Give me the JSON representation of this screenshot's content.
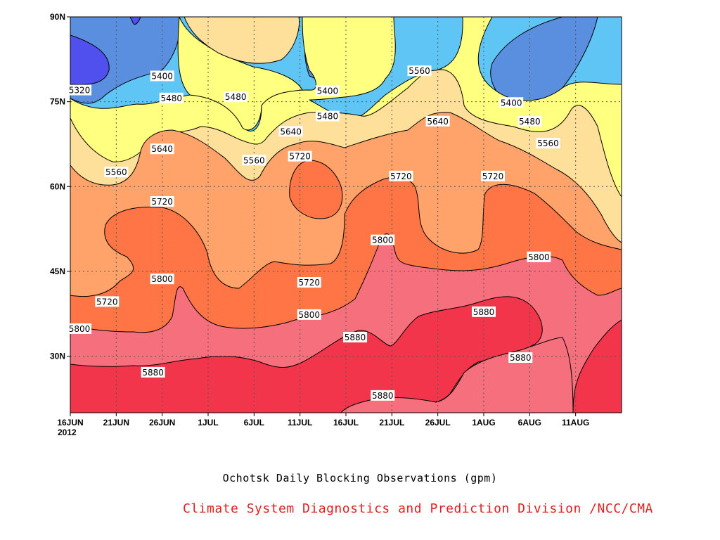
{
  "caption": {
    "title": "Ochotsk Daily Blocking Observations (gpm)",
    "credit": "Climate System Diagnostics and Prediction Division /NCC/CMA",
    "credit_color": "#e02020"
  },
  "chart_data": {
    "type": "heatmap",
    "subtype": "filled-contour",
    "title": "Ochotsk Daily Blocking Observations (gpm)",
    "units": "gpm",
    "x_axis": {
      "ticks": [
        "16JUN",
        "21JUN",
        "26JUN",
        "1JUL",
        "6JUL",
        "11JUL",
        "16JUL",
        "21JUL",
        "26JUL",
        "1AUG",
        "6AUG",
        "11AUG"
      ],
      "first_tick_year": "2012",
      "range": [
        "2012-06-16",
        "2012-08-15"
      ]
    },
    "y_axis": {
      "ticks": [
        "30N",
        "45N",
        "60N",
        "75N",
        "90N"
      ],
      "tick_values": [
        30,
        45,
        60,
        75,
        90
      ],
      "range": [
        20,
        90
      ]
    },
    "grid": "dotted",
    "contour_levels": [
      5320,
      5400,
      5480,
      5560,
      5640,
      5720,
      5800,
      5880
    ],
    "level_colors": {
      "below_5320": "#5050ee",
      "5320_5400": "#5a8fe0",
      "5400_5480": "#5fc5f5",
      "5480_5560": "#ffff80",
      "5560_5640": "#ffe09a",
      "5640_5720": "#ffa36b",
      "5720_5800": "#ff7545",
      "5800_5880": "#f5707c",
      "above_5880": "#f2354a"
    },
    "contour_labels": [
      {
        "value": 5320,
        "date": "2012-06-17",
        "lat": 77.0
      },
      {
        "value": 5400,
        "date": "2012-06-26",
        "lat": 79.5
      },
      {
        "value": 5480,
        "date": "2012-06-27",
        "lat": 75.6
      },
      {
        "value": 5480,
        "date": "2012-07-04",
        "lat": 75.8
      },
      {
        "value": 5400,
        "date": "2012-07-14",
        "lat": 76.9
      },
      {
        "value": 5560,
        "date": "2012-07-24",
        "lat": 80.4
      },
      {
        "value": 5480,
        "date": "2012-07-14",
        "lat": 72.4
      },
      {
        "value": 5400,
        "date": "2012-08-03",
        "lat": 74.8
      },
      {
        "value": 5480,
        "date": "2012-08-05",
        "lat": 71.5
      },
      {
        "value": 5640,
        "date": "2012-07-10",
        "lat": 69.7
      },
      {
        "value": 5640,
        "date": "2012-07-26",
        "lat": 71.5
      },
      {
        "value": 5640,
        "date": "2012-06-26",
        "lat": 66.6
      },
      {
        "value": 5560,
        "date": "2012-06-21",
        "lat": 62.5
      },
      {
        "value": 5560,
        "date": "2012-07-06",
        "lat": 64.6
      },
      {
        "value": 5560,
        "date": "2012-08-07",
        "lat": 67.6
      },
      {
        "value": 5720,
        "date": "2012-07-11",
        "lat": 65.3
      },
      {
        "value": 5720,
        "date": "2012-07-22",
        "lat": 61.8
      },
      {
        "value": 5720,
        "date": "2012-08-01",
        "lat": 61.8
      },
      {
        "value": 5720,
        "date": "2012-06-26",
        "lat": 57.3
      },
      {
        "value": 5800,
        "date": "2012-07-20",
        "lat": 50.5
      },
      {
        "value": 5800,
        "date": "2012-08-06",
        "lat": 47.5
      },
      {
        "value": 5800,
        "date": "2012-06-26",
        "lat": 43.6
      },
      {
        "value": 5720,
        "date": "2012-06-20",
        "lat": 39.6
      },
      {
        "value": 5720,
        "date": "2012-07-12",
        "lat": 43.0
      },
      {
        "value": 5800,
        "date": "2012-06-17",
        "lat": 34.8
      },
      {
        "value": 5800,
        "date": "2012-07-12",
        "lat": 37.3
      },
      {
        "value": 5880,
        "date": "2012-07-17",
        "lat": 33.3
      },
      {
        "value": 5880,
        "date": "2012-07-31",
        "lat": 37.8
      },
      {
        "value": 5880,
        "date": "2012-08-04",
        "lat": 29.7
      },
      {
        "value": 5880,
        "date": "2012-06-25",
        "lat": 27.1
      },
      {
        "value": 5880,
        "date": "2012-07-20",
        "lat": 23.0
      }
    ]
  }
}
